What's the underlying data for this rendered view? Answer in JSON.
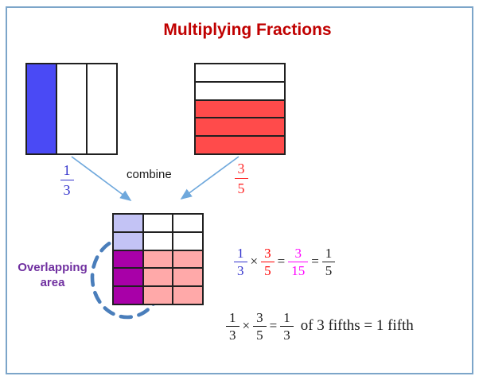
{
  "frame": {
    "border_color": "#7CA5C9",
    "background": "#FFFFFF"
  },
  "title": {
    "text": "Multiplying Fractions",
    "color": "#C00000"
  },
  "left_model": {
    "type": "fraction-bar-vertical",
    "columns": 3,
    "shaded_columns": 1,
    "fill_color": "#4A4AF5",
    "label": {
      "numerator": "1",
      "denominator": "3",
      "color": "#3333CC"
    }
  },
  "right_model": {
    "type": "fraction-bar-horizontal",
    "rows": 5,
    "shaded_rows": 3,
    "fill_color": "#FF4B4B",
    "label": {
      "numerator": "3",
      "denominator": "5",
      "color": "#FF2B2B"
    }
  },
  "combine_label": {
    "text": "combine"
  },
  "arrows": {
    "color": "#6FA8DC"
  },
  "combined_grid": {
    "rows": 5,
    "columns": 3,
    "colors": {
      "blue_only": "#C3C3F5",
      "red_only": "#FFA9A9",
      "overlap": "#A800A8",
      "unshaded": "#FFFFFF"
    }
  },
  "overlap_callout": {
    "line1": "Overlapping",
    "line2": "area",
    "text_color": "#7030A0",
    "ellipse_color": "#4A7EBB"
  },
  "equation1": {
    "fraction1": {
      "numerator": "1",
      "denominator": "3",
      "color": "#3333CC"
    },
    "times": "×",
    "fraction2": {
      "numerator": "3",
      "denominator": "5",
      "color": "#FF0000"
    },
    "equals1": "=",
    "product": {
      "numerator": "3",
      "denominator": "15",
      "color": "#FF00FF"
    },
    "equals2": "=",
    "simplified": {
      "numerator": "1",
      "denominator": "5",
      "color": "#1A1A1A"
    }
  },
  "equation2": {
    "fraction1": {
      "numerator": "1",
      "denominator": "3"
    },
    "times": "×",
    "fraction2": {
      "numerator": "3",
      "denominator": "5"
    },
    "equals": "=",
    "result": {
      "numerator": "1",
      "denominator": "3"
    },
    "suffix": "of 3 fifths = 1 fifth"
  }
}
